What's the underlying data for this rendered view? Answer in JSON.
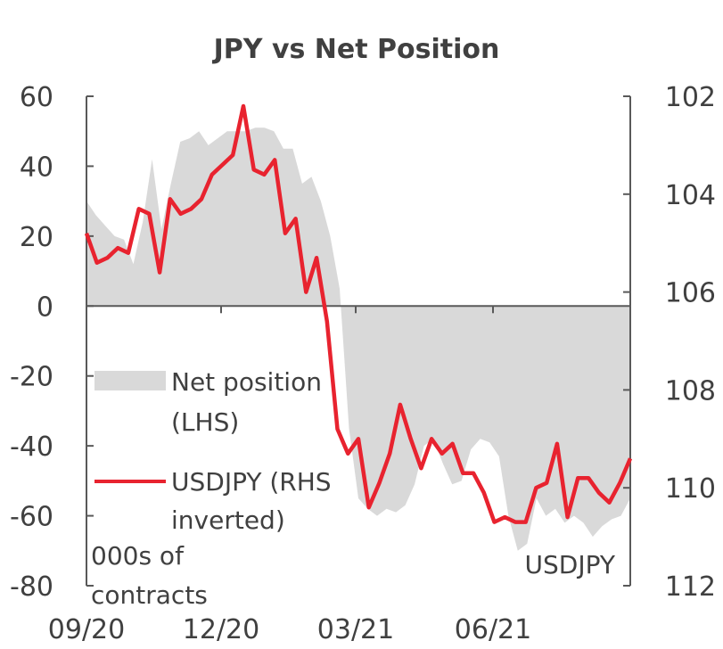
{
  "chart_data": {
    "type": "area",
    "title": "JPY vs Net Position",
    "left_axis": {
      "ylim": [
        -80,
        60
      ],
      "ticks": [
        60,
        40,
        20,
        0,
        -20,
        -40,
        -60,
        -80
      ],
      "unit_label": [
        "000s of",
        "contracts"
      ]
    },
    "right_axis": {
      "ylim": [
        102,
        112
      ],
      "inverted": true,
      "ticks": [
        102,
        104,
        106,
        108,
        110,
        112
      ],
      "label": "USDJPY"
    },
    "x_ticks": [
      "09/20",
      "12/20",
      "03/21",
      "06/21"
    ],
    "legend": {
      "placement": "left-middle",
      "entries": [
        {
          "key": "net",
          "lines": [
            "Net position",
            "(LHS)"
          ]
        },
        {
          "key": "usdjpy",
          "lines": [
            "USDJPY (RHS",
            "inverted)"
          ]
        }
      ]
    },
    "series": [
      {
        "name": "Net position (LHS)",
        "kind": "area",
        "color": "#d9d9d9",
        "values": [
          30,
          26,
          23,
          20,
          19,
          12,
          24,
          42,
          22,
          35,
          47,
          48,
          50,
          46,
          48,
          50,
          50,
          50,
          51,
          51,
          50,
          45,
          45,
          35,
          37,
          30,
          20,
          5,
          -35,
          -55,
          -58,
          -60,
          -58,
          -59,
          -57,
          -51,
          -40,
          -38,
          -45,
          -51,
          -50,
          -41,
          -38,
          -39,
          -43,
          -60,
          -70,
          -68,
          -55,
          -60,
          -58,
          -62,
          -60,
          -62,
          -66,
          -63,
          -61,
          -60,
          -55
        ]
      },
      {
        "name": "USDJPY (RHS inverted)",
        "kind": "line",
        "color": "#e8232f",
        "values": [
          104.8,
          105.4,
          105.3,
          105.1,
          105.2,
          104.3,
          104.4,
          105.6,
          104.1,
          104.4,
          104.3,
          104.1,
          103.6,
          103.4,
          103.2,
          102.2,
          103.5,
          103.6,
          103.3,
          104.8,
          104.5,
          106.0,
          105.3,
          106.6,
          108.8,
          109.3,
          109.0,
          110.4,
          109.9,
          109.3,
          108.3,
          109.0,
          109.6,
          109.0,
          109.3,
          109.1,
          109.7,
          109.7,
          110.1,
          110.7,
          110.6,
          110.7,
          110.7,
          110.0,
          109.9,
          109.1,
          110.6,
          109.8,
          109.8,
          110.1,
          110.3,
          109.9,
          109.4
        ]
      }
    ]
  }
}
